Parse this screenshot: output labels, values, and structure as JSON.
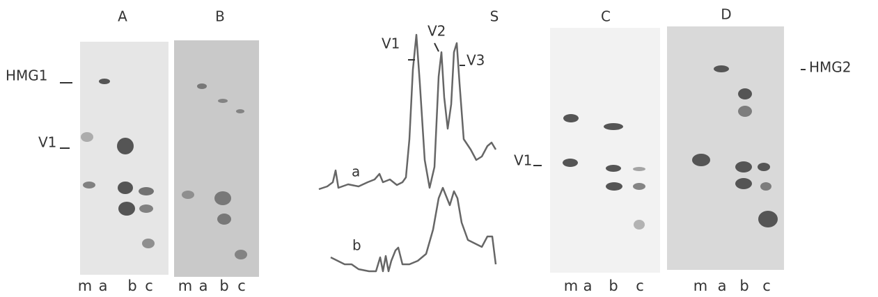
{
  "panels": [
    {
      "label": "A",
      "lanes": [
        "m",
        "a",
        "b",
        "c"
      ]
    },
    {
      "label": "B",
      "lanes": [
        "m",
        "a",
        "b",
        "c"
      ]
    },
    {
      "label": "C",
      "lanes": [
        "m",
        "a",
        "b",
        "c"
      ]
    },
    {
      "label": "D",
      "lanes": [
        "m",
        "a",
        "b",
        "c"
      ]
    }
  ],
  "markers": {
    "hmg1": "HMG1",
    "v1_left": "V1",
    "v1_right": "V1",
    "hmg2": "HMG2"
  },
  "scan": {
    "label": "S",
    "peaks": [
      "V1",
      "V2",
      "V3"
    ],
    "curves": [
      "a",
      "b"
    ]
  }
}
